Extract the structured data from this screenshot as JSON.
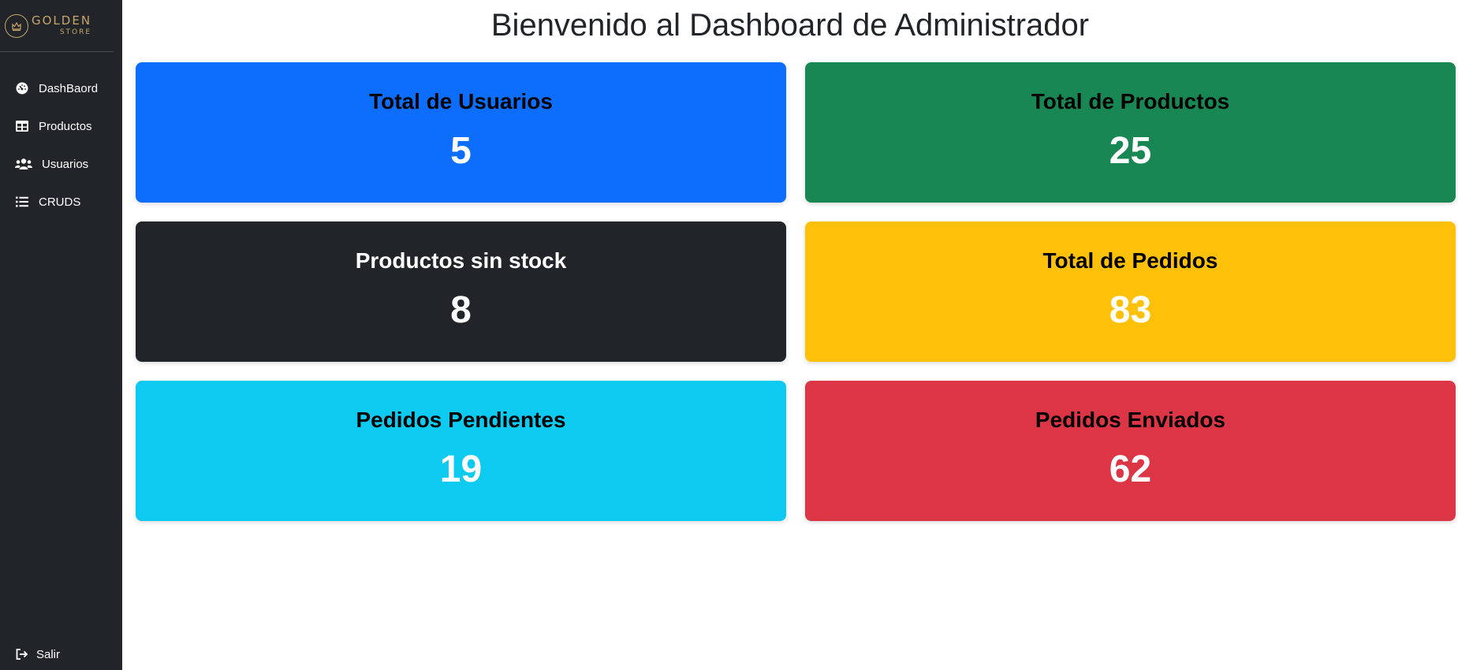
{
  "brand": {
    "name": "GOLDEN",
    "sub": "STORE",
    "color": "#c8a46a"
  },
  "sidebar": {
    "background": "#212529",
    "items": [
      {
        "label": "DashBaord",
        "icon": "gauge-icon"
      },
      {
        "label": "Productos",
        "icon": "table-icon"
      },
      {
        "label": "Usuarios",
        "icon": "users-icon"
      },
      {
        "label": "CRUDS",
        "icon": "list-icon"
      }
    ],
    "logout": {
      "label": "Salir",
      "icon": "sign-out-icon"
    }
  },
  "main": {
    "title": "Bienvenido al Dashboard de Administrador",
    "cards": [
      {
        "title": "Total de Usuarios",
        "value": "5",
        "bg": "#0d6efd",
        "title_color": "#000000",
        "value_color": "#ffffff"
      },
      {
        "title": "Total de Productos",
        "value": "25",
        "bg": "#198754",
        "title_color": "#000000",
        "value_color": "#ffffff"
      },
      {
        "title": "Productos sin stock",
        "value": "8",
        "bg": "#212529",
        "title_color": "#ffffff",
        "value_color": "#ffffff"
      },
      {
        "title": "Total de Pedidos",
        "value": "83",
        "bg": "#ffc107",
        "title_color": "#000000",
        "value_color": "#ffffff"
      },
      {
        "title": "Pedidos Pendientes",
        "value": "19",
        "bg": "#0dcaf0",
        "title_color": "#000000",
        "value_color": "#ffffff"
      },
      {
        "title": "Pedidos Enviados",
        "value": "62",
        "bg": "#dc3545",
        "title_color": "#000000",
        "value_color": "#ffffff"
      }
    ]
  }
}
